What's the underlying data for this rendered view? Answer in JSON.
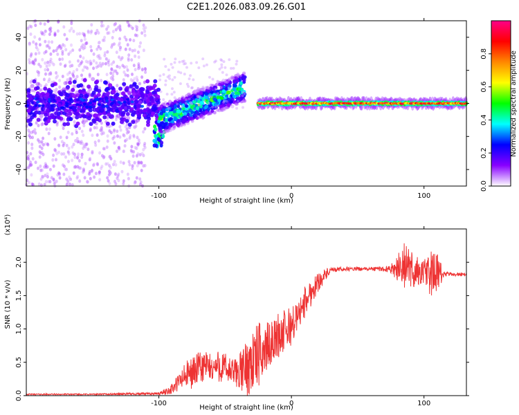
{
  "title": "C2E1.2026.083.09.26.G01",
  "colors": {
    "snr_line": "#ee3333",
    "axis": "#000000",
    "spectrogram_background": "#ffffff"
  },
  "chart_data": [
    {
      "type": "heatmap",
      "name": "spectrogram",
      "xlabel": "Height of straight line (km)",
      "ylabel": "Frequency (Hz)",
      "xlim": [
        -200,
        132
      ],
      "ylim": [
        -50,
        50
      ],
      "xticks": [
        -100,
        0,
        100
      ],
      "yticks": [
        -40,
        -20,
        0,
        20,
        40
      ],
      "colorbar": {
        "label": "Normalized spectral amplitude",
        "range": [
          0,
          1
        ],
        "ticks": [
          0.0,
          0.2,
          0.4,
          0.6,
          0.8
        ],
        "colormap": [
          "#ffffff",
          "#8800ff",
          "#0000ff",
          "#00ffff",
          "#00ff00",
          "#ffff00",
          "#ff8800",
          "#ff0000",
          "#ff0088"
        ]
      },
      "features": [
        {
          "region": "noisy scatter",
          "x_range": [
            -200,
            -110
          ],
          "freq_range": [
            -50,
            50
          ],
          "core_freq": 0,
          "core_amplitude": 0.15
        },
        {
          "region": "dip",
          "x": -100,
          "freq": -20,
          "amplitude": 0.45
        },
        {
          "region": "rising trend",
          "x_range": [
            -100,
            -35
          ],
          "freq_range": [
            -10,
            10
          ],
          "amplitude_range": [
            0.3,
            0.6
          ]
        },
        {
          "region": "steady signal",
          "x_range": [
            -25,
            132
          ],
          "freq": 0,
          "amplitude_range": [
            0.6,
            0.95
          ]
        }
      ]
    },
    {
      "type": "line",
      "name": "snr",
      "xlabel": "Height of straight line (km)",
      "ylabel": "SNR (10 * v/v)",
      "y_multiplier_label": "(x10⁴)",
      "xlim": [
        -200,
        132
      ],
      "ylim": [
        0,
        2.5
      ],
      "xticks": [
        -100,
        0,
        100
      ],
      "yticks": [
        0.0,
        0.5,
        1.0,
        1.5,
        2.0
      ],
      "ytick_labels": [
        "0.0",
        "0.5",
        "1.0",
        "1.5",
        "2.0"
      ],
      "series": [
        {
          "name": "SNR",
          "color": "#ee3333",
          "x": [
            -200,
            -150,
            -100,
            -95,
            -90,
            -85,
            -80,
            -75,
            -70,
            -65,
            -60,
            -55,
            -50,
            -45,
            -40,
            -35,
            -30,
            -25,
            -20,
            -15,
            -10,
            -5,
            0,
            5,
            10,
            15,
            20,
            25,
            30,
            40,
            50,
            60,
            70,
            75,
            80,
            85,
            90,
            95,
            100,
            105,
            110,
            115,
            120,
            125,
            132
          ],
          "values": [
            0.02,
            0.02,
            0.03,
            0.06,
            0.1,
            0.2,
            0.3,
            0.35,
            0.4,
            0.45,
            0.4,
            0.45,
            0.4,
            0.35,
            0.35,
            0.4,
            0.5,
            0.6,
            0.7,
            0.8,
            0.9,
            0.95,
            1.05,
            1.2,
            1.4,
            1.55,
            1.7,
            1.8,
            1.88,
            1.9,
            1.9,
            1.9,
            1.9,
            1.9,
            1.92,
            1.95,
            1.9,
            1.85,
            1.85,
            1.83,
            1.83,
            1.82,
            1.82,
            1.82,
            1.82
          ],
          "noise_amplitude": [
            0.01,
            0.01,
            0.02,
            0.05,
            0.08,
            0.15,
            0.2,
            0.25,
            0.25,
            0.25,
            0.2,
            0.25,
            0.25,
            0.2,
            0.25,
            0.4,
            0.5,
            0.5,
            0.4,
            0.3,
            0.35,
            0.35,
            0.3,
            0.2,
            0.25,
            0.2,
            0.15,
            0.1,
            0.04,
            0.03,
            0.03,
            0.03,
            0.04,
            0.06,
            0.2,
            0.35,
            0.3,
            0.25,
            0.2,
            0.35,
            0.3,
            0.05,
            0.03,
            0.03,
            0.03
          ]
        }
      ]
    }
  ]
}
